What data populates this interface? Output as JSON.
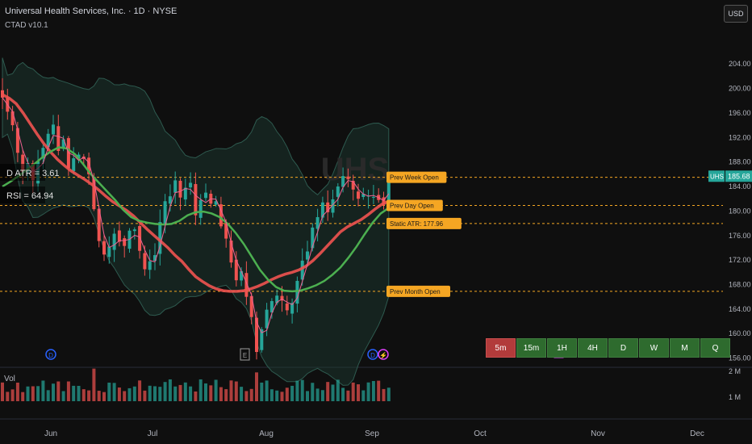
{
  "header": {
    "title": "Universal Health Services, Inc. · 1D · NYSE",
    "indicator": "CTAD v10.1"
  },
  "currency_button": "USD",
  "timeframes": [
    "5m",
    "15m",
    "1H",
    "4H",
    "D",
    "W",
    "M",
    "Q"
  ],
  "colors": {
    "background": "#0f0f0f",
    "up": "#26a69a",
    "down": "#ef5350",
    "ma_slow": "#ef5350",
    "ma_mid": "#4caf50",
    "ma_fast": "#f06292",
    "level_label": "#f5a623",
    "price_tag": "#26a69a",
    "tf_active": "#b23b3b",
    "tf_inactive": "#2e6b2e"
  },
  "chart_data": {
    "type": "candlestick",
    "symbol": "UHS",
    "watermark": "UHS",
    "y_ticks": [
      "204.00",
      "200.00",
      "196.00",
      "192.00",
      "188.00",
      "184.00",
      "180.00",
      "176.00",
      "172.00",
      "168.00",
      "164.00",
      "160.00",
      "156.00"
    ],
    "ylim": [
      154.5,
      208.5
    ],
    "x_ticks": [
      "Jun",
      "Jul",
      "Aug",
      "Sep",
      "Oct",
      "Nov",
      "Dec"
    ],
    "last_price_label": "185.68",
    "last_price": 185.68,
    "symbol_tag": "UHS",
    "levels": [
      {
        "label": "Prev Week Open",
        "value": 185.5
      },
      {
        "label": "Prev Day Open",
        "value": 180.9
      },
      {
        "label": "Static ATR: 177.96",
        "value": 177.96
      },
      {
        "label": "Prev Month Open",
        "value": 166.9
      }
    ],
    "indicator_labels": [
      "D ATR = 3.61",
      "RSI = 64.94"
    ],
    "volume_pane": {
      "label": "Vol",
      "ticks": [
        "2 M",
        "1 M"
      ]
    },
    "candles_close": [
      198.5,
      196.2,
      194.0,
      189.5,
      186.4,
      187.8,
      185.0,
      188.1,
      190.3,
      192.6,
      194.1,
      189.8,
      191.7,
      187.0,
      188.6,
      189.2,
      188.5,
      186.0,
      180.3,
      175.1,
      172.9,
      174.2,
      176.3,
      175.0,
      174.3,
      176.8,
      177.0,
      173.5,
      170.5,
      171.8,
      172.8,
      178.2,
      181.6,
      182.4,
      185.0,
      182.2,
      183.8,
      184.6,
      179.3,
      181.8,
      183.0,
      181.2,
      181.6,
      177.5,
      175.5,
      171.6,
      168.7,
      170.2,
      166.0,
      162.7,
      157.0,
      160.7,
      163.9,
      165.3,
      166.2,
      165.4,
      163.8,
      165.0,
      168.6,
      171.9,
      173.4,
      177.3,
      179.0,
      181.4,
      179.8,
      181.9,
      184.0,
      185.7,
      185.2,
      183.5,
      182.0,
      182.8,
      182.5,
      182.3,
      181.8,
      181.0,
      185.68
    ],
    "ma_slow": [
      199.0,
      198.4,
      197.5,
      196.0,
      194.3,
      192.6,
      191.0,
      189.6,
      188.4,
      187.4,
      186.5,
      185.8,
      185.1,
      184.3,
      183.4,
      182.4,
      181.5,
      180.8,
      180.1,
      179.2,
      178.1,
      177.0,
      176.0,
      175.0,
      174.0,
      172.8,
      171.8,
      170.5,
      169.3,
      168.5,
      167.8,
      167.3,
      167.0,
      166.9,
      166.9,
      167.0,
      167.3,
      167.7,
      168.2,
      168.8,
      169.3,
      169.7,
      170.0,
      170.4,
      171.0,
      171.9,
      173.0,
      174.2,
      175.4,
      176.6,
      177.4,
      178.0,
      178.6,
      179.4,
      180.3,
      181.1,
      181.6
    ],
    "ma_mid": [
      184.0,
      184.8,
      185.7,
      186.7,
      187.7,
      188.8,
      189.7,
      190.4,
      190.2,
      189.3,
      187.7,
      186.0,
      184.6,
      183.2,
      181.8,
      180.2,
      179.0,
      178.4,
      178.1,
      177.9,
      177.8,
      177.9,
      178.4,
      179.3,
      179.8,
      179.9,
      179.6,
      179.0,
      177.9,
      176.4,
      174.6,
      172.5,
      170.4,
      168.8,
      167.6,
      167.0,
      166.9,
      167.0,
      167.4,
      167.9,
      168.6,
      169.6,
      170.8,
      172.4,
      174.2,
      176.2,
      178.1,
      179.6,
      180.5
    ]
  }
}
